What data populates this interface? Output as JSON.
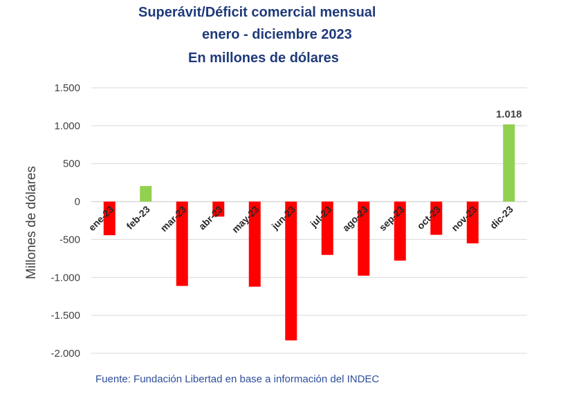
{
  "chart_data": {
    "type": "bar",
    "title": [
      "Superávit/Déficit comercial mensual",
      "enero - diciembre 2023",
      "En millones de dólares"
    ],
    "ylabel": "Millones de dólares",
    "xlabel": "",
    "categories": [
      "ene-23",
      "feb-23",
      "mar-23",
      "abr-23",
      "may-23",
      "jun-23",
      "jul-23",
      "ago-23",
      "sep-23",
      "oct-23",
      "nov-23",
      "dic-23"
    ],
    "values": [
      -443,
      205,
      -1112,
      -198,
      -1122,
      -1830,
      -703,
      -977,
      -778,
      -438,
      -551,
      1018
    ],
    "ylim": [
      -2000,
      1500
    ],
    "yticks": [
      1500,
      1000,
      500,
      0,
      -500,
      -1000,
      -1500,
      -2000
    ],
    "ytick_labels": [
      "1.500",
      "1.000",
      "500",
      "0",
      "-500",
      "-1.000",
      "-1.500",
      "-2.000"
    ],
    "data_labels": [
      {
        "category": "dic-23",
        "text": "1.018"
      }
    ],
    "grid": true,
    "legend": "none",
    "colors": {
      "positive": "#92d050",
      "negative": "#ff0000",
      "grid": "#d9d9d9",
      "axis_text": "#404040",
      "title": "#1f3a7a"
    }
  },
  "source": "Fuente: Fundación Libertad en base a información del INDEC"
}
